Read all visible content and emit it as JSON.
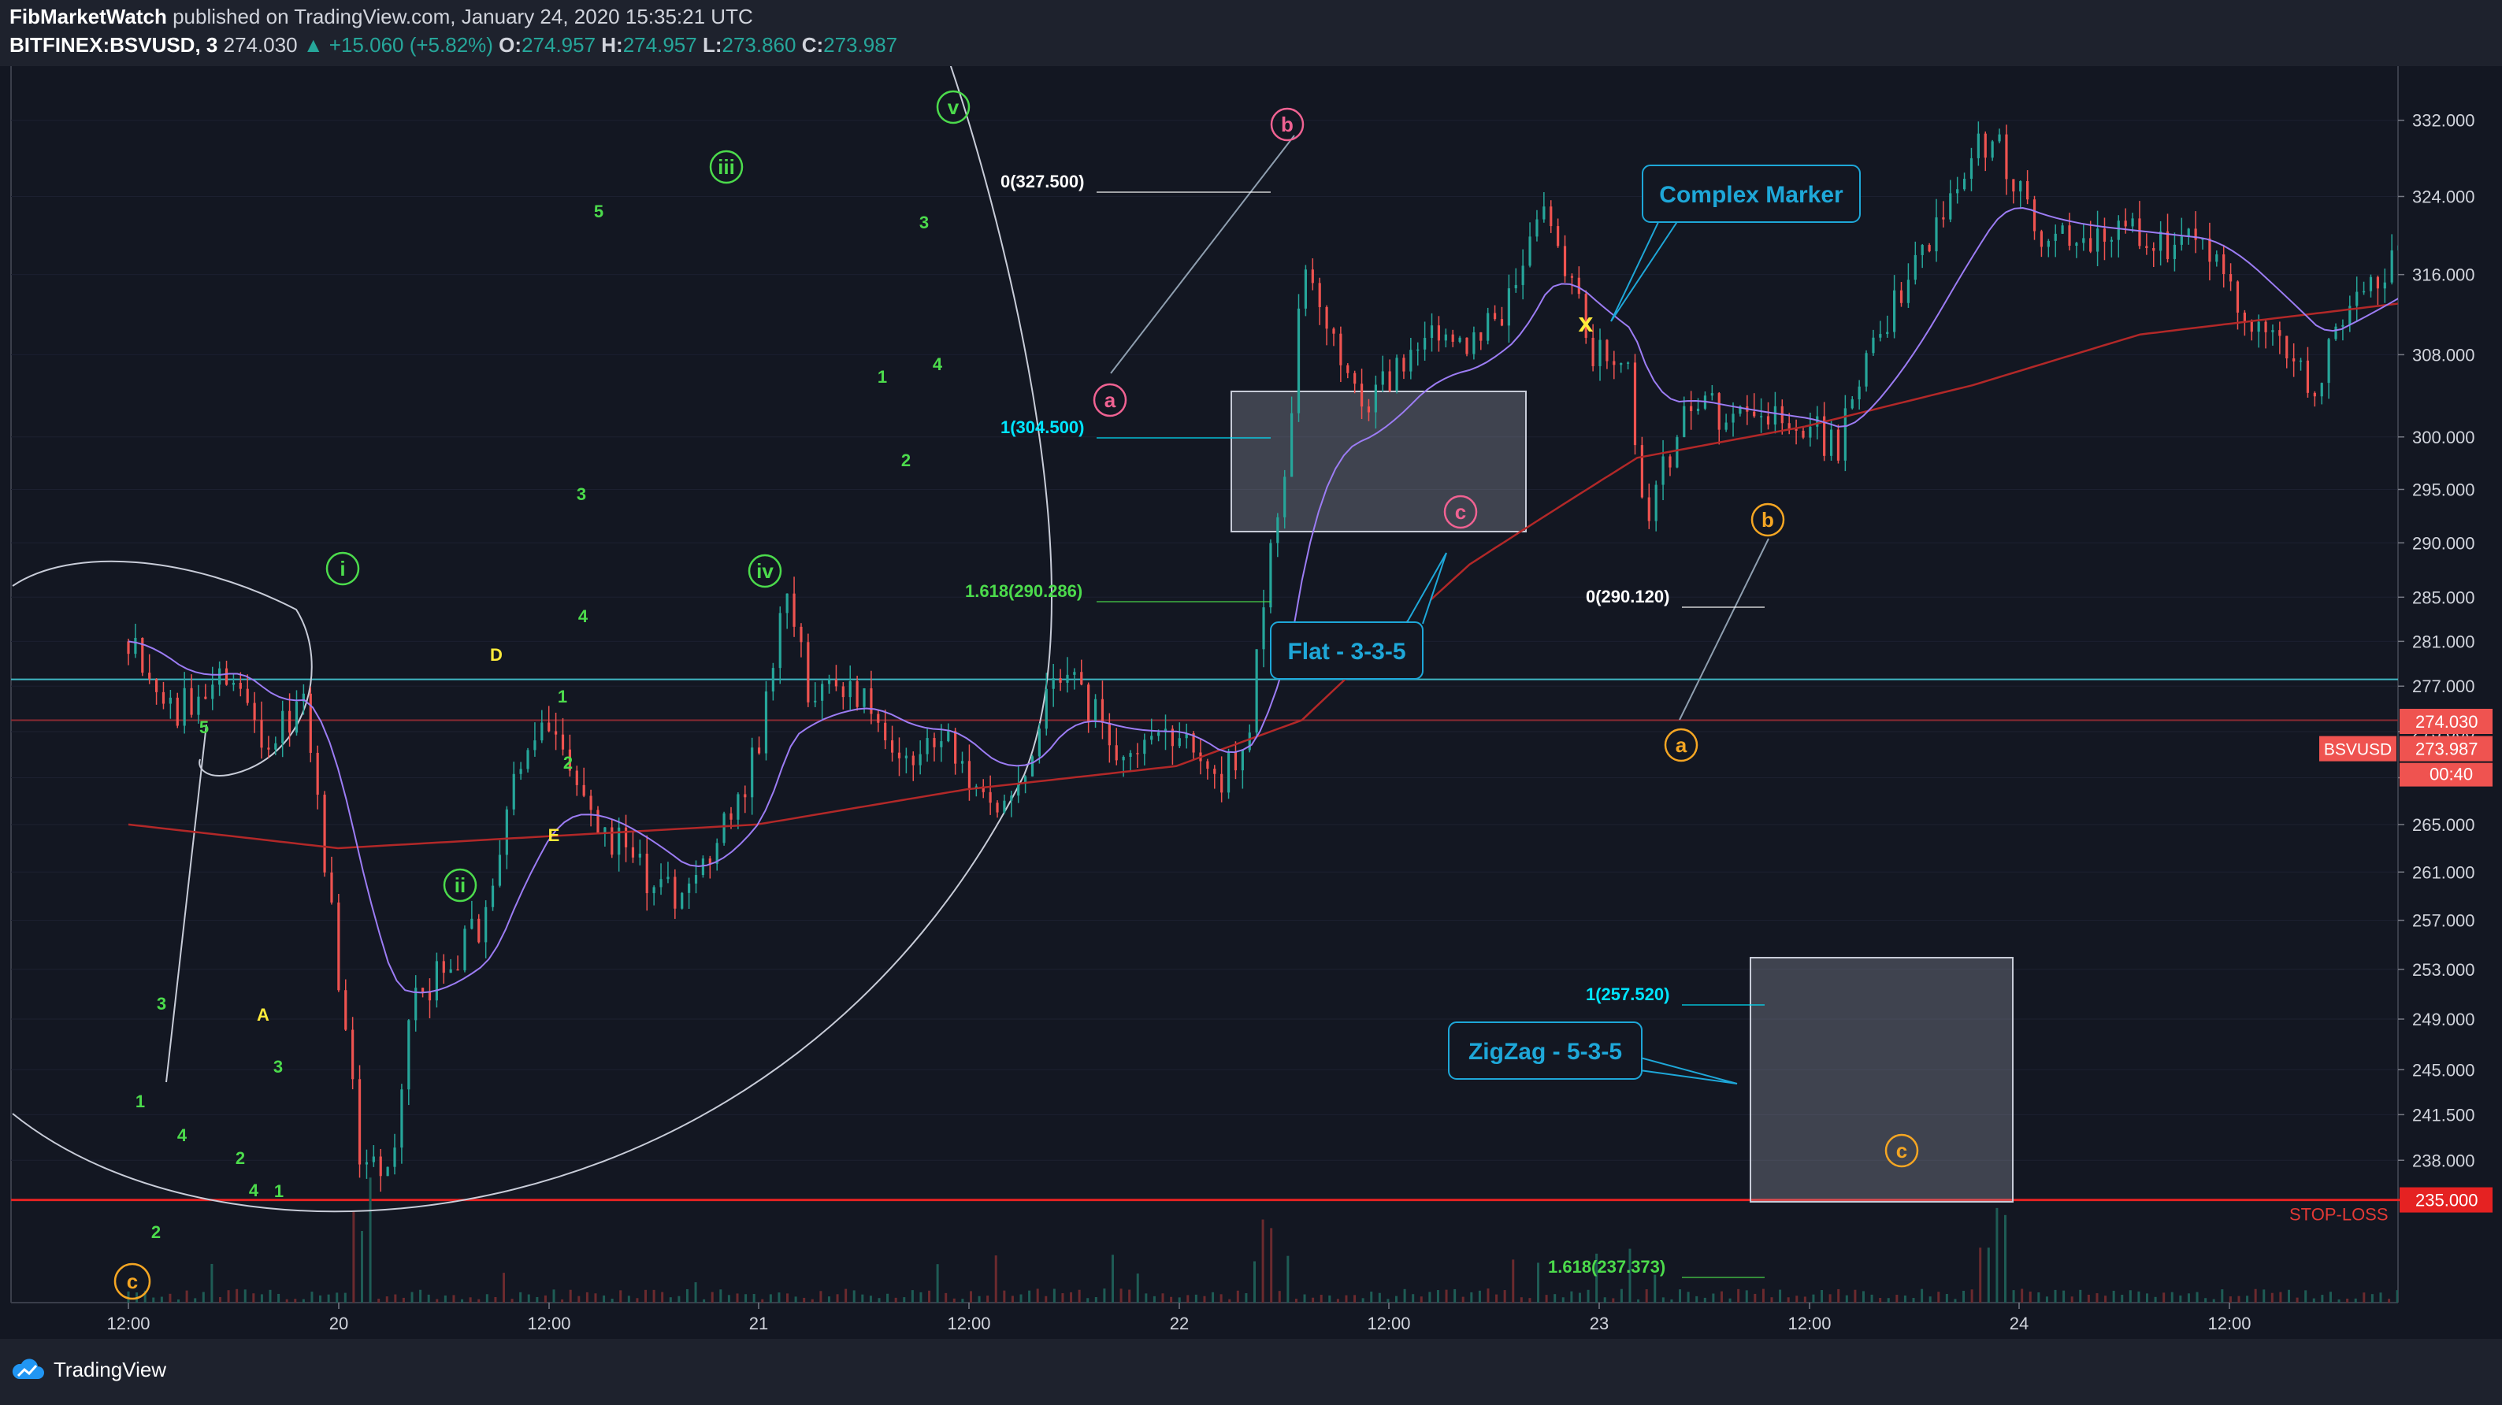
{
  "header": {
    "publisher": "FibMarketWatch",
    "published_text": " published on TradingView.com, January 24, 2020 15:35:21 UTC",
    "symbol": "BITFINEX:BSVUSD, 3",
    "last": "274.030",
    "change": "▲ +15.060 (+5.82%)",
    "o_label": "O:",
    "o_value": "274.957",
    "h_label": "H:",
    "h_value": "274.957",
    "l_label": "L:",
    "l_value": "273.860",
    "c_label": "C:",
    "c_value": "273.987"
  },
  "footer": {
    "brand": "TradingView"
  },
  "colors": {
    "background": "#131722",
    "up": "#26a69a",
    "down": "#ef5350",
    "ema_slow": "#b22828",
    "ema_fast": "#9c7cf4",
    "cyan": "#00e5ff",
    "lime": "#4cdb4c",
    "yellow": "#ffeb3b",
    "orange": "#f5a623",
    "pink": "#f06292"
  },
  "chart_data": {
    "type": "candlestick",
    "symbol": "BSVUSD",
    "timeframe": "3",
    "ylim": [
      234,
      333
    ],
    "y_scale": "log",
    "y_ticks": [
      "332.000",
      "324.000",
      "316.000",
      "308.000",
      "300.000",
      "295.000",
      "290.000",
      "285.000",
      "281.000",
      "277.000",
      "273.000",
      "269.000",
      "265.000",
      "261.000",
      "257.000",
      "253.000",
      "249.000",
      "245.000",
      "241.500",
      "238.000"
    ],
    "x_ticks": [
      "12:00",
      "20",
      "12:00",
      "21",
      "12:00",
      "22",
      "12:00",
      "23",
      "12:00",
      "24",
      "12:00"
    ],
    "last_price_label": "274.030",
    "close_label": "273.987",
    "symbol_label": "BSVUSD",
    "countdown": "00:40",
    "stop_loss": {
      "value": 235.0,
      "label": "STOP-LOSS",
      "price_label": "235.000"
    },
    "horizontal_lines": [
      277.6,
      274.0
    ],
    "path_keypoints": [
      [
        0.0,
        281
      ],
      [
        0.12,
        275
      ],
      [
        0.25,
        279
      ],
      [
        0.33,
        272
      ],
      [
        0.42,
        276
      ],
      [
        0.55,
        239
      ],
      [
        0.62,
        237
      ],
      [
        0.68,
        250
      ],
      [
        0.85,
        257
      ],
      [
        0.92,
        270
      ],
      [
        1.0,
        273
      ],
      [
        1.1,
        266
      ],
      [
        1.2,
        262
      ],
      [
        1.32,
        258
      ],
      [
        1.42,
        265
      ],
      [
        1.5,
        271
      ],
      [
        1.57,
        287
      ],
      [
        1.62,
        277
      ],
      [
        1.75,
        276
      ],
      [
        1.85,
        271
      ],
      [
        1.95,
        273
      ],
      [
        2.05,
        266
      ],
      [
        2.15,
        271
      ],
      [
        2.22,
        279
      ],
      [
        2.35,
        272
      ],
      [
        2.5,
        273
      ],
      [
        2.6,
        268
      ],
      [
        2.64,
        271
      ],
      [
        2.68,
        275
      ],
      [
        2.71,
        285
      ],
      [
        2.75,
        294
      ],
      [
        2.78,
        304
      ],
      [
        2.8,
        318
      ],
      [
        2.86,
        312
      ],
      [
        2.95,
        302
      ],
      [
        3.08,
        310
      ],
      [
        3.2,
        308
      ],
      [
        3.3,
        314
      ],
      [
        3.38,
        325
      ],
      [
        3.42,
        317
      ],
      [
        3.5,
        308
      ],
      [
        3.58,
        306
      ],
      [
        3.62,
        291
      ],
      [
        3.72,
        304
      ],
      [
        3.8,
        302
      ],
      [
        4.0,
        301
      ],
      [
        4.08,
        299
      ],
      [
        4.15,
        308
      ],
      [
        4.25,
        316
      ],
      [
        4.35,
        325
      ],
      [
        4.45,
        331
      ],
      [
        4.55,
        320
      ],
      [
        4.75,
        320
      ],
      [
        4.95,
        319
      ],
      [
        5.1,
        310
      ],
      [
        5.22,
        305
      ],
      [
        5.3,
        314
      ],
      [
        5.45,
        318
      ],
      [
        5.6,
        317
      ],
      [
        5.7,
        323
      ],
      [
        5.8,
        326
      ],
      [
        5.86,
        322
      ],
      [
        6.0,
        318
      ],
      [
        6.12,
        316
      ],
      [
        6.2,
        311
      ],
      [
        6.28,
        303
      ],
      [
        6.4,
        307
      ],
      [
        6.48,
        297
      ],
      [
        6.58,
        306
      ],
      [
        6.68,
        304
      ],
      [
        6.78,
        301
      ],
      [
        6.85,
        302
      ],
      [
        6.92,
        304
      ],
      [
        7.0,
        307
      ],
      [
        7.05,
        304
      ],
      [
        7.1,
        296
      ],
      [
        7.15,
        286
      ],
      [
        7.25,
        287
      ],
      [
        7.35,
        282
      ],
      [
        7.45,
        276
      ],
      [
        7.58,
        283
      ],
      [
        7.72,
        289
      ],
      [
        7.85,
        285
      ],
      [
        8.0,
        284
      ],
      [
        8.15,
        282
      ],
      [
        8.2,
        270
      ],
      [
        8.26,
        262
      ],
      [
        8.32,
        245
      ],
      [
        8.4,
        252
      ],
      [
        8.55,
        257
      ],
      [
        8.7,
        262
      ],
      [
        8.85,
        258
      ],
      [
        9.0,
        257
      ],
      [
        9.12,
        251
      ],
      [
        9.22,
        249
      ],
      [
        9.28,
        253
      ],
      [
        9.42,
        259
      ],
      [
        9.55,
        256
      ],
      [
        9.7,
        254
      ],
      [
        9.8,
        250
      ],
      [
        9.9,
        256
      ],
      [
        10.0,
        266
      ],
      [
        10.05,
        272
      ],
      [
        10.12,
        277
      ],
      [
        10.22,
        281
      ],
      [
        10.3,
        276
      ],
      [
        10.35,
        274
      ]
    ],
    "ema_slow_keypoints": [
      [
        0.0,
        265
      ],
      [
        0.5,
        263
      ],
      [
        1.0,
        264
      ],
      [
        1.5,
        265
      ],
      [
        2.0,
        268
      ],
      [
        2.5,
        270
      ],
      [
        2.8,
        274
      ],
      [
        3.2,
        288
      ],
      [
        3.6,
        298
      ],
      [
        4.0,
        301
      ],
      [
        4.4,
        305
      ],
      [
        4.8,
        310
      ],
      [
        5.2,
        312
      ],
      [
        5.6,
        314
      ],
      [
        6.0,
        314
      ],
      [
        6.4,
        313
      ],
      [
        6.8,
        310
      ],
      [
        7.0,
        308
      ],
      [
        7.2,
        304
      ],
      [
        7.6,
        297
      ],
      [
        8.0,
        292
      ],
      [
        8.2,
        288
      ],
      [
        8.5,
        280
      ],
      [
        8.8,
        274
      ],
      [
        9.1,
        270
      ],
      [
        9.4,
        265
      ],
      [
        9.7,
        262
      ],
      [
        10.0,
        259
      ],
      [
        10.2,
        263
      ],
      [
        10.35,
        268
      ]
    ],
    "fib_levels": [
      {
        "label": "0(327.500)",
        "value": 327.5,
        "color": "#ffffff"
      },
      {
        "label": "1(304.500)",
        "value": 304.5,
        "color": "#00e5ff"
      },
      {
        "label": "1.618(290.286)",
        "value": 290.286,
        "color": "#4cdb4c"
      },
      {
        "label": "0(290.120)",
        "value": 290.12,
        "color": "#ffffff"
      },
      {
        "label": "1(257.520)",
        "value": 257.52,
        "color": "#00e5ff"
      },
      {
        "label": "1.618(237.373)",
        "value": 237.373,
        "color": "#4cdb4c"
      }
    ],
    "annotations": [
      {
        "text": "Complex Marker",
        "color": "#00bcd4"
      },
      {
        "text": "Flat - 3-3-5",
        "color": "#00bcd4"
      },
      {
        "text": "ZigZag - 5-3-5",
        "color": "#00bcd4"
      }
    ],
    "wave_labels": [
      {
        "text": "c",
        "style": "circle",
        "color": "#f5a623"
      },
      {
        "text": "ii",
        "style": "circle",
        "color": "#4cdb4c"
      },
      {
        "text": "i",
        "style": "circle",
        "color": "#4cdb4c"
      },
      {
        "text": "iii",
        "style": "circle",
        "color": "#4cdb4c"
      },
      {
        "text": "iv",
        "style": "circle",
        "color": "#4cdb4c"
      },
      {
        "text": "v",
        "style": "circle",
        "color": "#4cdb4c"
      },
      {
        "text": "a",
        "style": "circle",
        "color": "#f06292"
      },
      {
        "text": "b",
        "style": "circle",
        "color": "#f06292"
      },
      {
        "text": "c",
        "style": "circle",
        "color": "#f06292"
      },
      {
        "text": "x",
        "style": "plain",
        "color": "#ffeb3b"
      },
      {
        "text": "a",
        "style": "circle",
        "color": "#f5a623"
      },
      {
        "text": "b",
        "style": "circle",
        "color": "#f5a623"
      },
      {
        "text": "c",
        "style": "circle",
        "color": "#f5a623"
      },
      {
        "text": "1",
        "style": "plain",
        "color": "#4cdb4c"
      },
      {
        "text": "2",
        "style": "plain",
        "color": "#4cdb4c"
      },
      {
        "text": "3",
        "style": "plain",
        "color": "#4cdb4c"
      },
      {
        "text": "4",
        "style": "plain",
        "color": "#4cdb4c"
      },
      {
        "text": "5",
        "style": "plain",
        "color": "#4cdb4c"
      },
      {
        "text": "A",
        "style": "plain",
        "color": "#ffeb3b"
      },
      {
        "text": "D",
        "style": "plain",
        "color": "#ffeb3b"
      },
      {
        "text": "E",
        "style": "plain",
        "color": "#ffeb3b"
      }
    ]
  }
}
